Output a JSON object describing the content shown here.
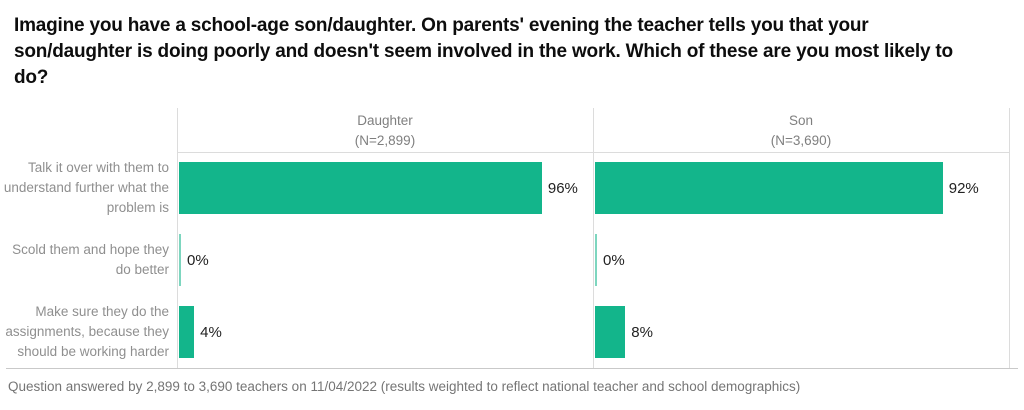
{
  "title": "Imagine you have a school-age son/daughter. On parents' evening the teacher tells you that your son/daughter is doing poorly and doesn't seem involved in the work. Which of these are you most likely to do?",
  "footer": "Question answered by 2,899 to 3,690 teachers on 11/04/2022 (results weighted to reflect national teacher and school demographics)",
  "colors": {
    "bar": "#13b58b",
    "grid": "#dcdcdc",
    "category_label": "#8f8f8f",
    "value_label": "#222222",
    "header_label": "#7f7f7f",
    "footer_text": "#757575"
  },
  "chart_data": {
    "type": "bar",
    "orientation": "horizontal",
    "title": "Imagine you have a school-age son/daughter. On parents' evening the teacher tells you that your son/daughter is doing poorly and doesn't seem involved in the work. Which of these are you most likely to do?",
    "categories": [
      "Talk it over with them to understand further what the problem is",
      "Scold them and hope they do better",
      "Make sure they do the assignments, because they should be working harder"
    ],
    "series": [
      {
        "name": "Daughter",
        "n_label": "(N=2,899)",
        "values": [
          96,
          0,
          4
        ]
      },
      {
        "name": "Son",
        "n_label": "(N=3,690)",
        "values": [
          92,
          0,
          8
        ]
      }
    ],
    "value_suffix": "%",
    "xlim": [
      0,
      100
    ],
    "grid": true,
    "legend_position": "column-headers",
    "annotation": "Question answered by 2,899 to 3,690 teachers on 11/04/2022 (results weighted to reflect national teacher and school demographics)"
  }
}
